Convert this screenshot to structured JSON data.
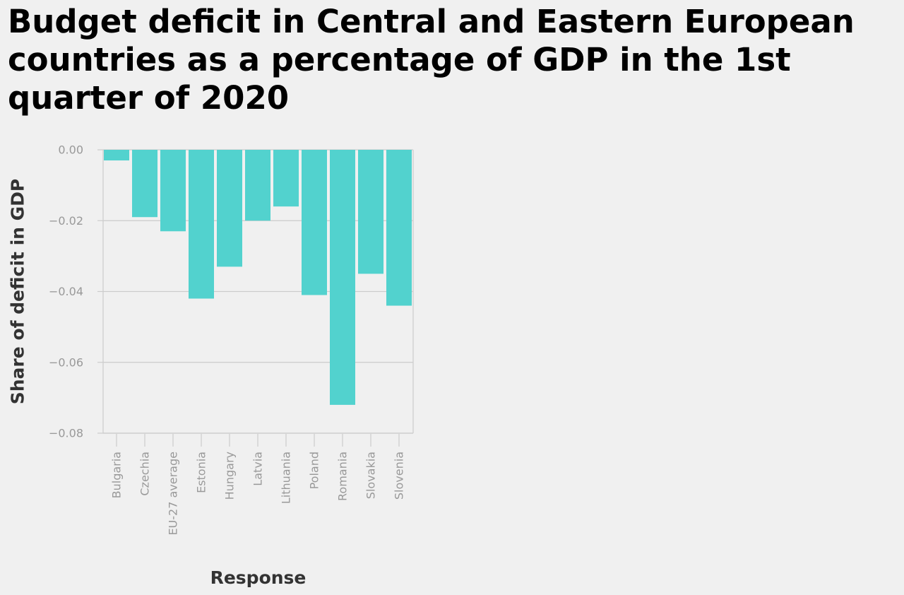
{
  "chart_data": {
    "type": "bar",
    "title": "Budget deficit in Central and Eastern European countries as a percentage of GDP in the 1st quarter of 2020",
    "xlabel": "Response",
    "ylabel": "Share of deficit in GDP",
    "categories": [
      "Bulgaria",
      "Czechia",
      "EU-27 average",
      "Estonia",
      "Hungary",
      "Latvia",
      "Lithuania",
      "Poland",
      "Romania",
      "Slovakia",
      "Slovenia"
    ],
    "values": [
      -0.003,
      -0.019,
      -0.023,
      -0.042,
      -0.033,
      -0.02,
      -0.016,
      -0.041,
      -0.072,
      -0.035,
      -0.044
    ],
    "ylim": [
      -0.08,
      0.0
    ],
    "yticks": [
      0.0,
      -0.02,
      -0.04,
      -0.06,
      -0.08
    ],
    "ytick_labels": [
      "0.00",
      "−0.02",
      "−0.04",
      "−0.06",
      "−0.08"
    ],
    "grid": true,
    "bar_color": "#52d2ce",
    "grid_color": "#cccccc",
    "axis_color": "#cccccc",
    "tick_label_color": "#999999"
  }
}
